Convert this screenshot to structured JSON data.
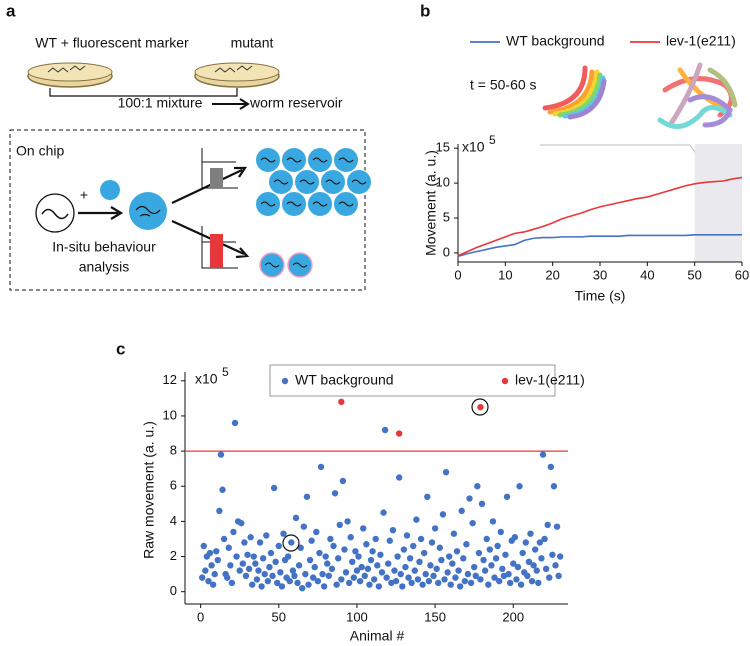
{
  "panels": {
    "a": {
      "label": "a",
      "strain_1": "WT + fluorescent marker",
      "strain_2": "mutant",
      "mixture": "100:1 mixture",
      "reservoir": "worm reservoir",
      "chip": "On chip",
      "plus": "+",
      "analysis": [
        "In-situ behaviour",
        "analysis"
      ]
    },
    "b": {
      "label": "b",
      "time_window": "t = 50-60 s"
    },
    "c": {
      "label": "c"
    }
  },
  "chart_data": [
    {
      "type": "line",
      "x_label": "Time (s)",
      "y_label": "Movement (a. u.)",
      "y_multiplier": "x10",
      "y_exponent": "5",
      "x": [
        0,
        2,
        4,
        6,
        8,
        10,
        12,
        14,
        16,
        18,
        20,
        22,
        24,
        26,
        28,
        30,
        32,
        34,
        36,
        38,
        40,
        42,
        44,
        46,
        48,
        50,
        52,
        54,
        56,
        58,
        60
      ],
      "series": [
        {
          "name": "WT background",
          "color": "#4472c4",
          "values": [
            -0.5,
            -0.1,
            0.2,
            0.5,
            0.8,
            1.0,
            1.2,
            1.8,
            2.1,
            2.2,
            2.2,
            2.3,
            2.3,
            2.3,
            2.4,
            2.4,
            2.4,
            2.4,
            2.5,
            2.5,
            2.5,
            2.5,
            2.5,
            2.5,
            2.5,
            2.6,
            2.6,
            2.6,
            2.6,
            2.6,
            2.6
          ]
        },
        {
          "name": "lev-1(e211)",
          "color": "#e8373a",
          "values": [
            -0.4,
            0.2,
            0.8,
            1.3,
            1.8,
            2.3,
            2.8,
            3.0,
            3.4,
            3.8,
            4.3,
            4.9,
            5.3,
            5.7,
            6.2,
            6.6,
            6.9,
            7.2,
            7.5,
            7.8,
            8.0,
            8.4,
            8.8,
            9.2,
            9.6,
            9.9,
            10.1,
            10.2,
            10.3,
            10.6,
            10.8
          ]
        }
      ],
      "xlim": [
        0,
        60
      ],
      "xticks": [
        0,
        10,
        20,
        30,
        40,
        50,
        60
      ],
      "ylim": [
        -1.3,
        15.6
      ],
      "yticks": [
        0,
        5,
        10,
        15
      ],
      "highlight_x": [
        50,
        60
      ],
      "grid": false
    },
    {
      "type": "scatter",
      "x_label": "Animal #",
      "y_label": "Raw movement (a. u.)",
      "y_multiplier": "x10",
      "y_exponent": "5",
      "series": [
        {
          "name": "WT background",
          "color": "#4472c4",
          "x": [
            1,
            2,
            3,
            4,
            5,
            6,
            7,
            8,
            9,
            10,
            11,
            12,
            13,
            14,
            15,
            16,
            17,
            18,
            19,
            20,
            21,
            22,
            23,
            24,
            25,
            26,
            27,
            28,
            29,
            30,
            31,
            32,
            33,
            34,
            35,
            36,
            37,
            38,
            39,
            40,
            41,
            42,
            43,
            44,
            45,
            46,
            47,
            48,
            49,
            50,
            51,
            52,
            53,
            54,
            55,
            56,
            57,
            58,
            59,
            60,
            61,
            62,
            63,
            64,
            65,
            66,
            67,
            68,
            69,
            70,
            71,
            72,
            73,
            74,
            75,
            76,
            77,
            78,
            79,
            80,
            81,
            82,
            83,
            84,
            85,
            86,
            87,
            88,
            89,
            90,
            91,
            92,
            93,
            94,
            95,
            96,
            97,
            98,
            99,
            100,
            101,
            102,
            103,
            104,
            105,
            106,
            107,
            108,
            109,
            110,
            111,
            112,
            113,
            114,
            115,
            116,
            117,
            118,
            119,
            120,
            121,
            122,
            123,
            124,
            125,
            126,
            127,
            128,
            129,
            130,
            131,
            132,
            133,
            134,
            135,
            136,
            137,
            138,
            139,
            140,
            141,
            142,
            143,
            144,
            145,
            146,
            147,
            148,
            149,
            150,
            151,
            152,
            153,
            154,
            155,
            156,
            157,
            158,
            159,
            160,
            161,
            162,
            163,
            164,
            165,
            166,
            167,
            168,
            169,
            170,
            171,
            172,
            173,
            174,
            175,
            176,
            177,
            178,
            179,
            180,
            181,
            182,
            183,
            184,
            185,
            186,
            187,
            188,
            189,
            190,
            191,
            192,
            193,
            194,
            195,
            196,
            197,
            198,
            199,
            200,
            201,
            202,
            203,
            204,
            205,
            206,
            207,
            208,
            209,
            210,
            211,
            212,
            213,
            214,
            215,
            216,
            217,
            218,
            219,
            220,
            221,
            222,
            223,
            224,
            225,
            226,
            227,
            228,
            229,
            230
          ],
          "values": [
            0.8,
            2.6,
            1.2,
            2.0,
            0.6,
            2.2,
            1.5,
            0.4,
            1.0,
            2.3,
            1.8,
            4.6,
            7.8,
            5.8,
            3.0,
            1.0,
            0.8,
            2.5,
            1.5,
            0.5,
            3.4,
            9.6,
            2.0,
            4.0,
            1.2,
            3.9,
            1.6,
            2.8,
            0.9,
            2.1,
            1.3,
            3.1,
            0.4,
            2.0,
            1.6,
            0.7,
            1.2,
            2.8,
            0.3,
            1.9,
            1.0,
            3.2,
            0.6,
            1.4,
            2.2,
            0.9,
            5.9,
            1.7,
            0.5,
            2.6,
            1.1,
            0.3,
            3.3,
            1.8,
            0.8,
            2.0,
            0.6,
            2.8,
            1.2,
            0.9,
            4.2,
            0.5,
            1.5,
            2.5,
            0.2,
            3.7,
            1.0,
            5.4,
            0.4,
            1.8,
            2.9,
            0.8,
            1.4,
            3.4,
            0.6,
            2.2,
            7.1,
            1.0,
            0.3,
            2.0,
            1.6,
            0.9,
            3.0,
            1.3,
            2.6,
            5.6,
            0.4,
            1.9,
            3.8,
            0.7,
            6.3,
            2.4,
            1.1,
            4.0,
            0.5,
            3.1,
            1.7,
            0.8,
            2.3,
            1.2,
            2.0,
            0.6,
            1.4,
            3.6,
            0.9,
            2.7,
            1.3,
            0.4,
            1.8,
            2.3,
            0.7,
            3.0,
            1.5,
            0.3,
            2.1,
            1.1,
            4.5,
            9.2,
            0.8,
            1.6,
            2.9,
            0.5,
            3.5,
            1.2,
            0.6,
            2.0,
            6.5,
            1.0,
            0.3,
            2.4,
            1.4,
            3.2,
            0.8,
            1.9,
            0.5,
            2.6,
            1.2,
            4.1,
            0.7,
            1.7,
            3.0,
            0.4,
            2.2,
            1.0,
            5.4,
            0.6,
            1.5,
            2.8,
            0.9,
            3.6,
            1.3,
            0.5,
            2.5,
            1.8,
            4.4,
            0.7,
            6.8,
            1.1,
            2.0,
            0.4,
            1.6,
            3.3,
            0.8,
            2.3,
            1.2,
            0.3,
            4.6,
            1.9,
            0.6,
            2.7,
            1.0,
            5.3,
            0.5,
            3.9,
            1.4,
            0.9,
            6.0,
            2.2,
            0.7,
            5.0,
            1.8,
            1.2,
            3.0,
            0.4,
            2.4,
            1.5,
            4.0,
            0.8,
            1.9,
            2.6,
            0.6,
            3.4,
            1.3,
            0.9,
            2.1,
            5.4,
            1.0,
            0.5,
            2.9,
            1.6,
            3.1,
            0.7,
            1.4,
            6.0,
            0.4,
            2.2,
            1.1,
            2.8,
            0.9,
            1.7,
            3.3,
            0.6,
            1.5,
            2.4,
            1.2,
            0.5,
            2.8,
            1.9,
            7.8,
            3.0,
            1.3,
            3.8,
            0.8,
            7.1,
            2.1,
            6.0,
            1.5,
            3.7,
            0.9,
            2.0
          ]
        },
        {
          "name": "lev-1(e211)",
          "color": "#e8373a",
          "x": [
            90,
            127,
            179
          ],
          "values": [
            10.8,
            9.0,
            10.5
          ]
        }
      ],
      "xlim": [
        -10,
        235
      ],
      "xticks": [
        0,
        50,
        100,
        150,
        200
      ],
      "ylim": [
        -0.7,
        12.5
      ],
      "yticks": [
        0,
        2,
        4,
        6,
        8,
        10,
        12
      ],
      "hline": 8,
      "hline_color": "#e8373a",
      "grid": false
    }
  ]
}
